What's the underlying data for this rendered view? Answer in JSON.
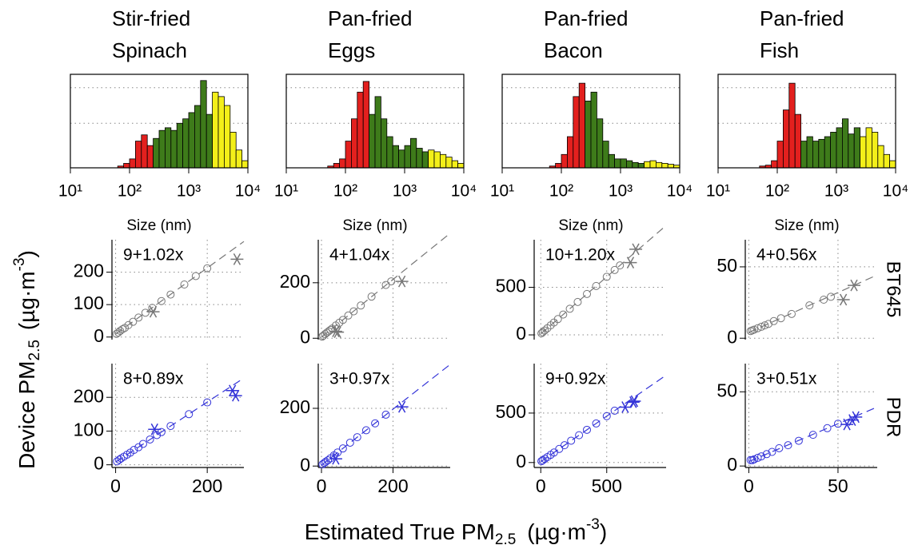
{
  "x_label": [
    "Estimated True PM",
    "2.5",
    "(µg·m",
    "-3",
    ")"
  ],
  "y_label": [
    "Device PM",
    "2.5",
    "(µg·m",
    "-3",
    ")"
  ],
  "rows": [
    "BT645",
    "PDR"
  ],
  "chart_data": [
    {
      "type": "histogram",
      "title": [
        "Stir-fried",
        "Spinach"
      ],
      "x_label": "Size (nm)",
      "log_x": true,
      "xlim": [
        10,
        10000
      ],
      "xticks": [
        {
          "value": 10,
          "label": "10¹"
        },
        {
          "value": 100,
          "label": "10²"
        },
        {
          "value": 1000,
          "label": "10³"
        },
        {
          "value": 10000,
          "label": "10⁴"
        }
      ],
      "ylim": [
        0,
        1.05
      ],
      "yticks": [
        0.5,
        0.9
      ],
      "grid": true,
      "bins": [
        39.8,
        50.1,
        63.1,
        79.4,
        100,
        125.9,
        158.5,
        199.5,
        251.2,
        316.2,
        398.1,
        501.2,
        631,
        794.3,
        1000,
        1258.9,
        1584.9,
        1995.3,
        2511.9,
        3162.3,
        3981.1,
        5011.9,
        6309.6,
        7943.3,
        10000
      ],
      "segments": [
        {
          "color": "#e3201e",
          "values": [
            0,
            0,
            0.02,
            0.05,
            0.1,
            0.3,
            0.37,
            0.25
          ]
        },
        {
          "color": "#3e7b1a",
          "values": [
            0.33,
            0.42,
            0.45,
            0.42,
            0.5,
            0.55,
            0.62,
            0.7,
            0.98,
            0.6
          ]
        },
        {
          "color": "#f3ef19",
          "values": [
            0.85,
            0.8,
            0.7,
            0.4,
            0.2,
            0.08
          ]
        }
      ]
    },
    {
      "type": "histogram",
      "title": [
        "Pan-fried",
        "Eggs"
      ],
      "x_label": "Size (nm)",
      "log_x": true,
      "xlim": [
        10,
        10000
      ],
      "xticks": [
        {
          "value": 10,
          "label": "10¹"
        },
        {
          "value": 100,
          "label": "10²"
        },
        {
          "value": 1000,
          "label": "10³"
        },
        {
          "value": 10000,
          "label": "10⁴"
        }
      ],
      "ylim": [
        0,
        1.05
      ],
      "yticks": [
        0.5,
        0.9
      ],
      "grid": true,
      "bins": [
        39.8,
        50.1,
        63.1,
        79.4,
        100,
        125.9,
        158.5,
        199.5,
        251.2,
        316.2,
        398.1,
        501.2,
        631,
        794.3,
        1000,
        1258.9,
        1584.9,
        1995.3,
        2511.9,
        3162.3,
        3981.1,
        5011.9,
        6309.6,
        7943.3,
        10000
      ],
      "segments": [
        {
          "color": "#e3201e",
          "values": [
            0,
            0.02,
            0.05,
            0.1,
            0.3,
            0.55,
            0.85,
            0.97
          ]
        },
        {
          "color": "#3e7b1a",
          "values": [
            0.6,
            0.8,
            0.55,
            0.35,
            0.25,
            0.2,
            0.25,
            0.33,
            0.22,
            0.18
          ]
        },
        {
          "color": "#f3ef19",
          "values": [
            0.2,
            0.18,
            0.15,
            0.12,
            0.08,
            0.05
          ]
        }
      ]
    },
    {
      "type": "histogram",
      "title": [
        "Pan-fried",
        "Bacon"
      ],
      "x_label": "Size (nm)",
      "log_x": true,
      "xlim": [
        10,
        10000
      ],
      "xticks": [
        {
          "value": 10,
          "label": "10¹"
        },
        {
          "value": 100,
          "label": "10²"
        },
        {
          "value": 1000,
          "label": "10³"
        },
        {
          "value": 10000,
          "label": "10⁴"
        }
      ],
      "ylim": [
        0,
        1.05
      ],
      "yticks": [
        0.5,
        0.9
      ],
      "grid": true,
      "bins": [
        39.8,
        50.1,
        63.1,
        79.4,
        100,
        125.9,
        158.5,
        199.5,
        251.2,
        316.2,
        398.1,
        501.2,
        631,
        794.3,
        1000,
        1258.9,
        1584.9,
        1995.3,
        2511.9,
        3162.3,
        3981.1,
        5011.9,
        6309.6,
        7943.3,
        10000
      ],
      "segments": [
        {
          "color": "#e3201e",
          "values": [
            0,
            0,
            0.02,
            0.05,
            0.15,
            0.35,
            0.8,
            0.95
          ]
        },
        {
          "color": "#3e7b1a",
          "values": [
            0.75,
            0.85,
            0.55,
            0.3,
            0.15,
            0.1,
            0.1,
            0.08,
            0.06,
            0.05
          ]
        },
        {
          "color": "#f3ef19",
          "values": [
            0.07,
            0.08,
            0.06,
            0.05,
            0.04,
            0.03
          ]
        }
      ]
    },
    {
      "type": "histogram",
      "title": [
        "Pan-fried",
        "Fish"
      ],
      "x_label": "Size (nm)",
      "log_x": true,
      "xlim": [
        10,
        10000
      ],
      "xticks": [
        {
          "value": 10,
          "label": "10¹"
        },
        {
          "value": 100,
          "label": "10²"
        },
        {
          "value": 1000,
          "label": "10³"
        },
        {
          "value": 10000,
          "label": "10⁴"
        }
      ],
      "ylim": [
        0,
        1.05
      ],
      "yticks": [
        0.5,
        0.9
      ],
      "grid": true,
      "bins": [
        39.8,
        50.1,
        63.1,
        79.4,
        100,
        125.9,
        158.5,
        199.5,
        251.2,
        316.2,
        398.1,
        501.2,
        631,
        794.3,
        1000,
        1258.9,
        1584.9,
        1995.3,
        2511.9,
        3162.3,
        3981.1,
        5011.9,
        6309.6,
        7943.3,
        10000
      ],
      "segments": [
        {
          "color": "#e3201e",
          "values": [
            0,
            0.02,
            0.03,
            0.08,
            0.3,
            0.65,
            0.95,
            0.6
          ]
        },
        {
          "color": "#3e7b1a",
          "values": [
            0.3,
            0.35,
            0.3,
            0.32,
            0.35,
            0.4,
            0.45,
            0.55,
            0.38,
            0.45
          ]
        },
        {
          "color": "#f3ef19",
          "values": [
            0.35,
            0.45,
            0.4,
            0.25,
            0.15,
            0.08
          ]
        }
      ]
    },
    {
      "type": "scatter",
      "xlim": [
        -8,
        280
      ],
      "xticks": [
        0,
        200
      ],
      "ylim": [
        -8,
        300
      ],
      "yticks": [
        0,
        100,
        200
      ],
      "grid": true,
      "fit": {
        "label": "9+1.02x",
        "intercept": 9,
        "slope": 1.02
      },
      "series": [
        {
          "marker": "circle",
          "color": "#777777",
          "x": [
            2,
            6,
            10,
            15,
            20,
            28,
            38,
            50,
            65,
            80,
            100,
            120,
            150,
            175,
            200
          ],
          "values": [
            10,
            14,
            19,
            24,
            28,
            37,
            47,
            60,
            75,
            90,
            111,
            131,
            162,
            188,
            212
          ]
        },
        {
          "marker": "star",
          "color": "#777777",
          "x": [
            82,
            265
          ],
          "values": [
            78,
            240
          ]
        }
      ]
    },
    {
      "type": "scatter",
      "xlim": [
        -9,
        360
      ],
      "xticks": [
        0,
        200
      ],
      "ylim": [
        -5,
        355
      ],
      "yticks": [
        0,
        200
      ],
      "grid": true,
      "fit": {
        "label": "4+1.04x",
        "intercept": 4,
        "slope": 1.04
      },
      "series": [
        {
          "marker": "circle",
          "color": "#777777",
          "x": [
            2,
            5,
            10,
            15,
            20,
            25,
            30,
            40,
            50,
            60,
            75,
            90,
            110,
            140,
            180,
            195
          ],
          "values": [
            6,
            9,
            15,
            20,
            25,
            30,
            35,
            46,
            56,
            66,
            82,
            97,
            118,
            150,
            192,
            205
          ]
        },
        {
          "marker": "star",
          "color": "#777777",
          "x": [
            40,
            45,
            225
          ],
          "values": [
            25,
            22,
            205
          ]
        }
      ]
    },
    {
      "type": "scatter",
      "xlim": [
        -50,
        950
      ],
      "xticks": [
        0,
        500
      ],
      "ylim": [
        -50,
        1000
      ],
      "yticks": [
        0,
        500
      ],
      "grid": true,
      "fit": {
        "label": "10+1.20x",
        "intercept": 10,
        "slope": 1.2
      },
      "series": [
        {
          "marker": "circle",
          "color": "#777777",
          "x": [
            5,
            15,
            30,
            50,
            75,
            100,
            130,
            170,
            220,
            280,
            350,
            420,
            500,
            560,
            600
          ],
          "values": [
            16,
            28,
            46,
            70,
            100,
            130,
            166,
            214,
            274,
            346,
            430,
            514,
            610,
            682,
            730
          ]
        },
        {
          "marker": "star",
          "color": "#777777",
          "x": [
            680,
            720
          ],
          "values": [
            760,
            900
          ]
        }
      ]
    },
    {
      "type": "scatter",
      "xlim": [
        -2,
        72
      ],
      "xticks": [
        0,
        50
      ],
      "ylim": [
        -1,
        69
      ],
      "yticks": [
        0,
        50
      ],
      "grid": true,
      "fit": {
        "label": "4+0.56x",
        "intercept": 4,
        "slope": 0.56
      },
      "series": [
        {
          "marker": "circle",
          "color": "#777777",
          "x": [
            1,
            2,
            3,
            5,
            7,
            9,
            11,
            14,
            18,
            24,
            34,
            42,
            46
          ],
          "values": [
            5,
            5.5,
            6,
            7,
            8,
            9,
            10,
            12,
            14,
            17,
            23,
            27,
            29
          ]
        },
        {
          "marker": "star",
          "color": "#777777",
          "x": [
            53,
            59
          ],
          "values": [
            27,
            37
          ]
        }
      ]
    },
    {
      "type": "scatter",
      "xlim": [
        -8,
        280
      ],
      "xticks": [
        0,
        200
      ],
      "ylim": [
        -8,
        300
      ],
      "yticks": [
        0,
        100,
        200
      ],
      "grid": true,
      "fit": {
        "label": "8+0.89x",
        "intercept": 8,
        "slope": 0.89
      },
      "series": [
        {
          "marker": "circle",
          "color": "#3434d8",
          "x": [
            3,
            8,
            12,
            18,
            25,
            32,
            40,
            50,
            60,
            75,
            90,
            100,
            120,
            160,
            200
          ],
          "values": [
            10,
            15,
            19,
            24,
            30,
            36,
            44,
            52,
            62,
            75,
            88,
            97,
            115,
            150,
            185
          ]
        },
        {
          "marker": "star",
          "color": "#3434d8",
          "x": [
            85,
            255,
            262
          ],
          "values": [
            105,
            220,
            205
          ]
        }
      ]
    },
    {
      "type": "scatter",
      "xlim": [
        -9,
        360
      ],
      "xticks": [
        0,
        200
      ],
      "ylim": [
        -5,
        355
      ],
      "yticks": [
        0,
        200
      ],
      "grid": true,
      "fit": {
        "label": "3+0.97x",
        "intercept": 3,
        "slope": 0.97
      },
      "series": [
        {
          "marker": "circle",
          "color": "#3434d8",
          "x": [
            3,
            8,
            12,
            18,
            25,
            35,
            45,
            60,
            80,
            100,
            125,
            150,
            180
          ],
          "values": [
            6,
            11,
            15,
            20,
            27,
            37,
            47,
            61,
            81,
            100,
            124,
            148,
            178
          ]
        },
        {
          "marker": "star",
          "color": "#3434d8",
          "x": [
            40,
            225
          ],
          "values": [
            25,
            205
          ]
        }
      ]
    },
    {
      "type": "scatter",
      "xlim": [
        -50,
        950
      ],
      "xticks": [
        0,
        500
      ],
      "ylim": [
        -50,
        1000
      ],
      "yticks": [
        0,
        500
      ],
      "grid": true,
      "fit": {
        "label": "9+0.92x",
        "intercept": 9,
        "slope": 0.92
      },
      "series": [
        {
          "marker": "circle",
          "color": "#3434d8",
          "x": [
            5,
            15,
            30,
            50,
            75,
            100,
            140,
            180,
            230,
            290,
            350,
            420,
            500,
            560
          ],
          "values": [
            14,
            23,
            37,
            55,
            78,
            101,
            138,
            175,
            221,
            276,
            331,
            395,
            469,
            524
          ]
        },
        {
          "marker": "star",
          "color": "#3434d8",
          "x": [
            640,
            700,
            710
          ],
          "values": [
            560,
            610,
            620
          ]
        }
      ]
    },
    {
      "type": "scatter",
      "xlim": [
        -2,
        72
      ],
      "xticks": [
        0,
        50
      ],
      "ylim": [
        -1,
        69
      ],
      "yticks": [
        0,
        50
      ],
      "grid": true,
      "fit": {
        "label": "3+0.51x",
        "intercept": 3,
        "slope": 0.51
      },
      "series": [
        {
          "marker": "circle",
          "color": "#3434d8",
          "x": [
            1,
            2,
            3,
            5,
            7,
            10,
            13,
            17,
            22,
            28,
            36,
            44,
            50
          ],
          "values": [
            4,
            4,
            4.5,
            5.5,
            6.5,
            8,
            9.5,
            12,
            14,
            17,
            21,
            25.5,
            28.5
          ]
        },
        {
          "marker": "star",
          "color": "#3434d8",
          "x": [
            55,
            58,
            60
          ],
          "values": [
            28,
            31,
            33
          ]
        }
      ]
    }
  ]
}
